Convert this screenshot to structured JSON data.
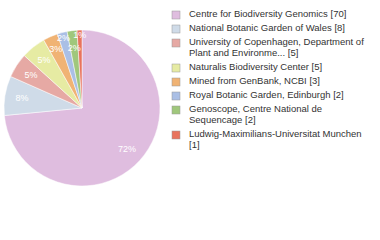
{
  "chart_data": {
    "type": "pie",
    "categories": [
      "Centre for Biodiversity Genomics [70]",
      "National Botanic Garden of Wales [8]",
      "University of Copenhagen, Department of Plant and Environme... [5]",
      "Naturalis Biodiversity Center [5]",
      "Mined from GenBank, NCBI [3]",
      "Royal Botanic Garden, Edinburgh [2]",
      "Genoscope, Centre National de Sequencage [2]",
      "Ludwig-Maximilians-Universitat Munchen [1]"
    ],
    "values": [
      72,
      8,
      5,
      5,
      3,
      2,
      2,
      1
    ],
    "value_labels": [
      "72%",
      "8%",
      "5%",
      "5%",
      "3%",
      "2%",
      "2%",
      "1%"
    ],
    "colors": [
      "#dfbddf",
      "#cfdbe8",
      "#e6a9a4",
      "#e6eba3",
      "#f0b374",
      "#aabfe5",
      "#a0c77c",
      "#e8735d"
    ],
    "data_labels": true,
    "legend": "right"
  }
}
